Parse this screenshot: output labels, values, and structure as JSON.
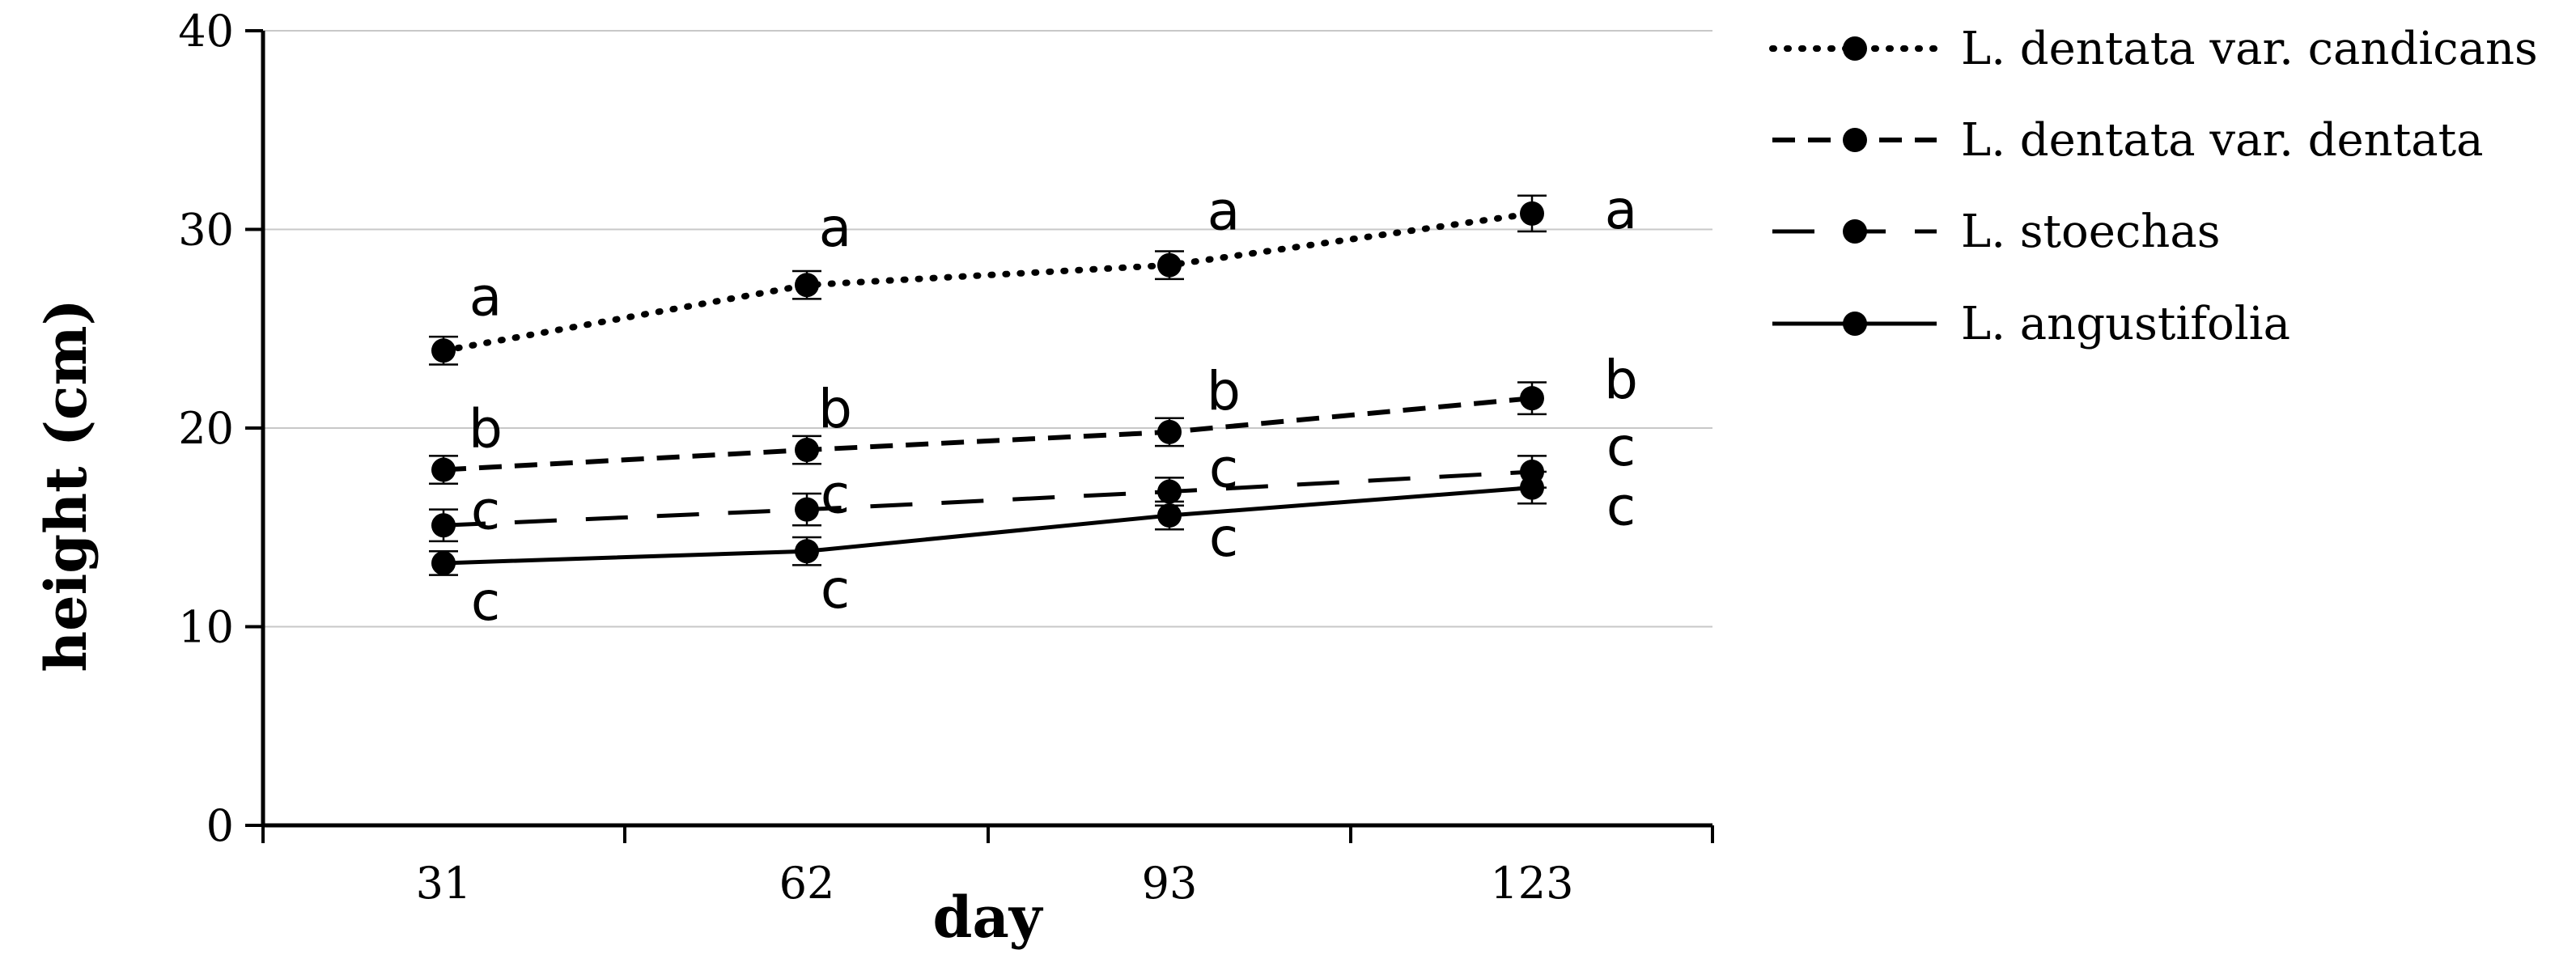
{
  "chart_data": {
    "type": "line",
    "title": "",
    "xlabel": "day",
    "ylabel": "height (cm)",
    "categories": [
      "31",
      "62",
      "93",
      "123"
    ],
    "ylim": [
      0,
      40
    ],
    "yticks": [
      "0",
      "10",
      "20",
      "30",
      "40"
    ],
    "grid": true,
    "legend_position": "top-right, outside plot",
    "series": [
      {
        "name": "L. dentata var. candicans",
        "style": "dotted",
        "values": [
          23.9,
          27.2,
          28.2,
          30.8
        ],
        "errors": [
          0.7,
          0.7,
          0.7,
          0.9
        ],
        "significance": [
          "a",
          "a",
          "a",
          "a"
        ]
      },
      {
        "name": "L. dentata var. dentata",
        "style": "dashed",
        "values": [
          17.9,
          18.9,
          19.8,
          21.5
        ],
        "errors": [
          0.7,
          0.7,
          0.7,
          0.8
        ],
        "significance": [
          "b",
          "b",
          "b",
          "b"
        ]
      },
      {
        "name": "L. stoechas",
        "style": "long-dash",
        "values": [
          15.1,
          15.9,
          16.8,
          17.8
        ],
        "errors": [
          0.8,
          0.8,
          0.7,
          0.8
        ],
        "significance": [
          "c",
          "c",
          "c",
          "c"
        ]
      },
      {
        "name": "L. angustifolia",
        "style": "solid",
        "values": [
          13.2,
          13.8,
          15.6,
          17.0
        ],
        "errors": [
          0.6,
          0.7,
          0.7,
          0.8
        ],
        "significance": [
          "c",
          "c",
          "c",
          "c"
        ]
      }
    ]
  }
}
